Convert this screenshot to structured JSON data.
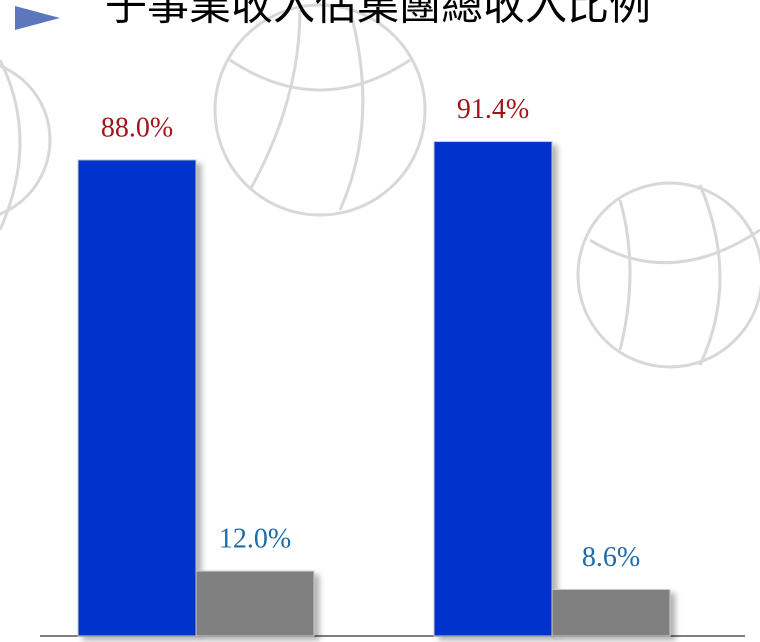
{
  "chart_data": {
    "type": "bar",
    "title": "子事業收入佔集團總收入比例",
    "categories": [
      null,
      null
    ],
    "series": [
      {
        "color": "#0033cc",
        "label_color": "#a0161a",
        "values": [
          88.0,
          91.4
        ],
        "value_labels": [
          "88.0%",
          "91.4%"
        ]
      },
      {
        "color": "#808080",
        "label_color": "#1f6aa8",
        "values": [
          12.0,
          8.6
        ],
        "value_labels": [
          "12.0%",
          "8.6%"
        ]
      }
    ],
    "ylim": [
      0,
      100
    ]
  }
}
